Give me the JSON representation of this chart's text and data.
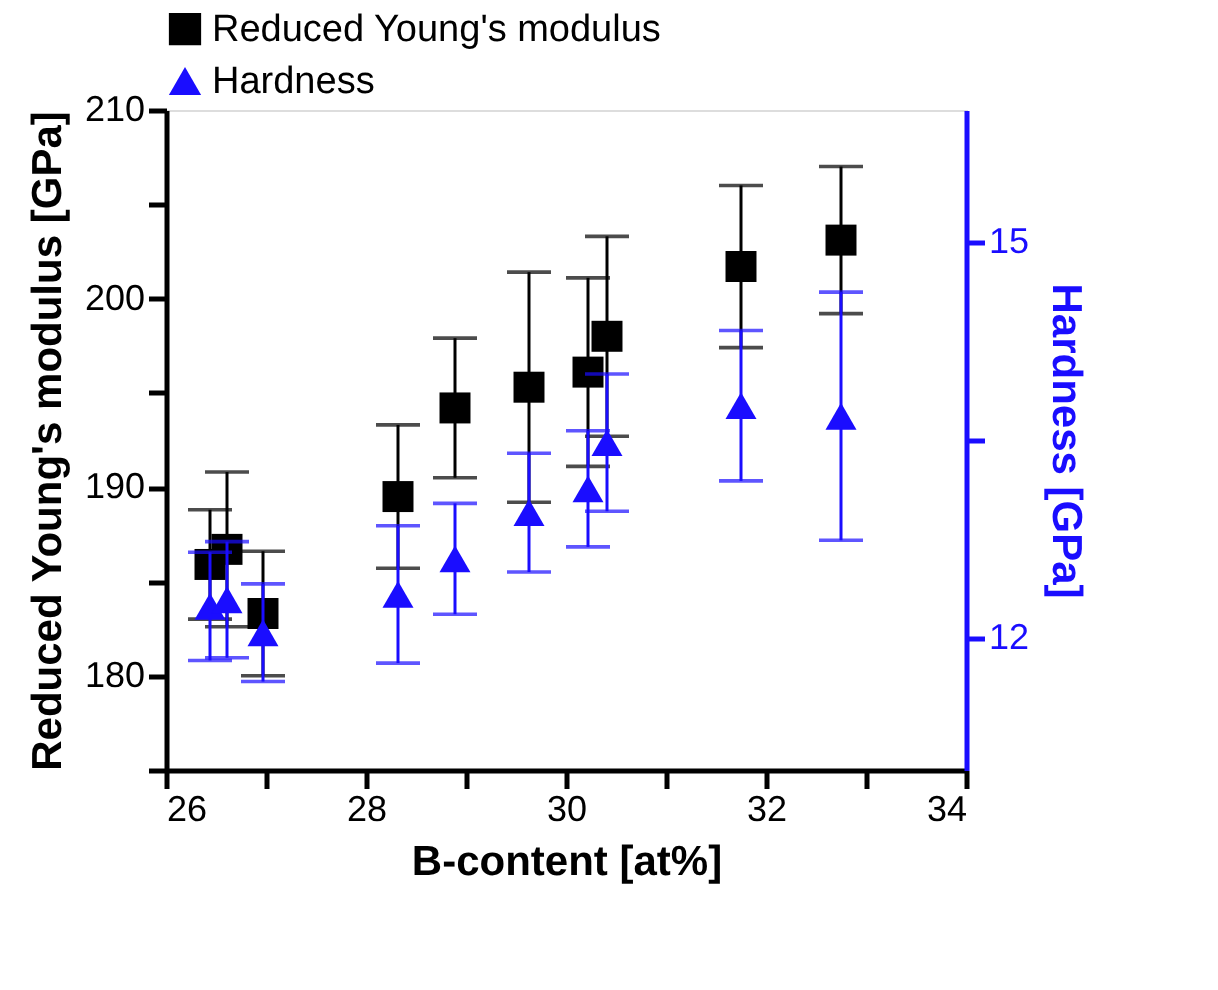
{
  "chart_data": {
    "type": "scatter",
    "xlabel": "B-content [at%]",
    "ylabel": "Reduced Young's modulus [GPa]",
    "y2label": "Hardness [GPa]",
    "x": [
      26.44,
      26.61,
      26.97,
      28.32,
      28.89,
      29.63,
      30.22,
      30.41,
      31.75,
      32.75
    ],
    "series": [
      {
        "name": "Reduced Young's modulus",
        "color": "#000000",
        "marker": "square",
        "axis": "y",
        "values": [
          185.9,
          186.7,
          183.3,
          189.5,
          194.2,
          195.3,
          196.1,
          198.0,
          201.7,
          203.1
        ],
        "errors": [
          2.9,
          4.1,
          3.3,
          3.8,
          3.7,
          6.1,
          5.0,
          5.3,
          4.3,
          3.9
        ]
      },
      {
        "name": "Hardness",
        "color": "#1a0dff",
        "marker": "triangle",
        "axis": "y2",
        "values": [
          12.24,
          12.29,
          12.04,
          12.33,
          12.6,
          12.95,
          13.13,
          13.48,
          13.76,
          13.68
        ],
        "errors": [
          0.41,
          0.44,
          0.37,
          0.52,
          0.42,
          0.45,
          0.44,
          0.52,
          0.57,
          0.94
        ]
      }
    ],
    "xlim": [
      26,
      34
    ],
    "xticks": [
      26,
      {
        "value": 27,
        "label": null
      },
      28,
      {
        "value": 29,
        "label": null
      },
      30,
      {
        "value": 31,
        "label": null
      },
      32,
      {
        "value": 33,
        "label": null
      },
      34
    ],
    "ylim": [
      175,
      210
    ],
    "yticks": [
      {
        "value": 175,
        "label": null
      },
      180,
      {
        "value": 185,
        "label": null
      },
      190,
      {
        "value": 195,
        "label": null
      },
      200,
      {
        "value": 205,
        "label": null
      },
      210
    ],
    "y2lim": [
      11,
      16
    ],
    "y2ticks": [
      12,
      {
        "value": 13.5,
        "label": null
      },
      15
    ],
    "grid": false,
    "legend": "top"
  }
}
